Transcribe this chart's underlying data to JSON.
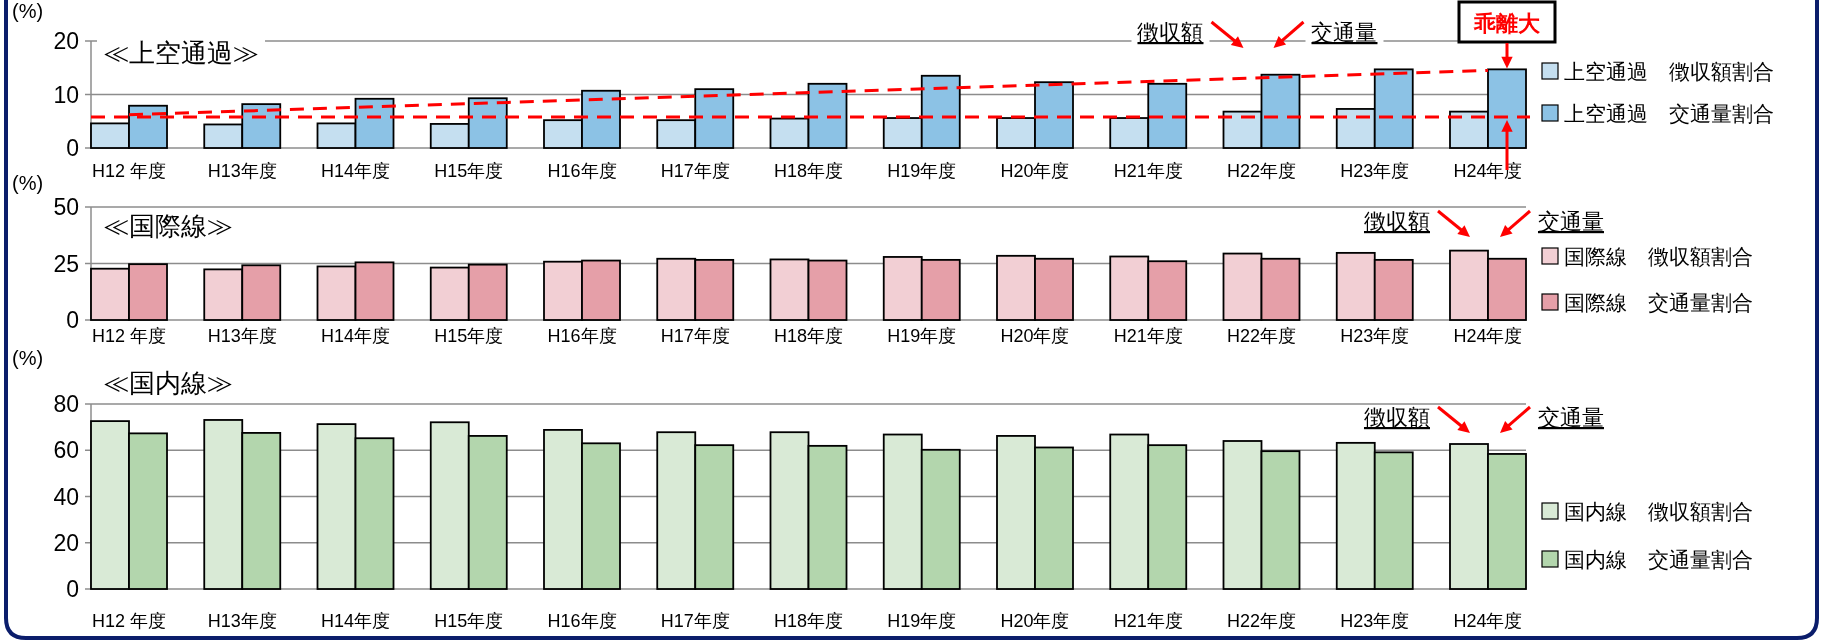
{
  "chart_data": [
    {
      "type": "bar",
      "title": "≪上空通過≫",
      "ylabel": "(%)",
      "categories": [
        "H12 年度",
        "H13年度",
        "H14年度",
        "H15年度",
        "H16年度",
        "H17年度",
        "H18年度",
        "H19年度",
        "H20年度",
        "H21年度",
        "H22年度",
        "H23年度",
        "H24年度"
      ],
      "series": [
        {
          "name": "上空通過　徴収額割合",
          "color": "#c5dff0",
          "values": [
            4.6,
            4.4,
            4.6,
            4.5,
            5.2,
            5.2,
            5.5,
            5.6,
            5.6,
            5.6,
            6.8,
            7.3,
            6.8
          ]
        },
        {
          "name": "上空通過　交通量割合",
          "color": "#8cc2e5",
          "values": [
            7.9,
            8.2,
            9.2,
            9.3,
            10.7,
            11.0,
            12.0,
            13.5,
            12.3,
            12.0,
            13.7,
            14.7,
            14.7
          ]
        },
        {
          "type": "line",
          "color": "#ff0000",
          "line_style": "dashed",
          "x": [
            "H12 年度",
            "H24年度"
          ],
          "values": [
            6.2,
            14.5
          ]
        }
      ],
      "ref_lines": [
        {
          "axis": "y",
          "value": 5.8,
          "color": "#ff0000",
          "line_style": "dashed"
        }
      ],
      "ylim": [
        0,
        20
      ],
      "yticks": [
        0,
        10,
        20
      ],
      "grid": "y",
      "legend": "right",
      "annotations": [
        "徴収額",
        "交通量",
        "乖離大"
      ]
    },
    {
      "type": "bar",
      "title": "≪国際線≫",
      "ylabel": "(%)",
      "categories": [
        "H12 年度",
        "H13年度",
        "H14年度",
        "H15年度",
        "H16年度",
        "H17年度",
        "H18年度",
        "H19年度",
        "H20年度",
        "H21年度",
        "H22年度",
        "H23年度",
        "H24年度"
      ],
      "series": [
        {
          "name": "国際線　徴収額割合",
          "color": "#f2cfd4",
          "values": [
            22.7,
            22.4,
            23.7,
            23.2,
            25.8,
            27.1,
            26.8,
            27.9,
            28.4,
            28.1,
            29.4,
            29.7,
            30.7
          ]
        },
        {
          "name": "国際線　交通量割合",
          "color": "#e59fa8",
          "values": [
            24.7,
            24.2,
            25.5,
            24.5,
            26.3,
            26.6,
            26.3,
            26.6,
            27.1,
            26.0,
            27.1,
            26.6,
            27.1
          ]
        }
      ],
      "ylim": [
        0,
        50
      ],
      "yticks": [
        0,
        25,
        50
      ],
      "grid": "y",
      "legend": "right",
      "annotations": [
        "徴収額",
        "交通量"
      ]
    },
    {
      "type": "bar",
      "title": "≪国内線≫",
      "ylabel": "(%)",
      "categories": [
        "H12 年度",
        "H13年度",
        "H14年度",
        "H15年度",
        "H16年度",
        "H17年度",
        "H18年度",
        "H19年度",
        "H20年度",
        "H21年度",
        "H22年度",
        "H23年度",
        "H24年度"
      ],
      "series": [
        {
          "name": "国内線　徴収額割合",
          "color": "#d9ead6",
          "values": [
            72.6,
            73.1,
            71.3,
            72.1,
            68.8,
            67.8,
            67.8,
            66.8,
            66.2,
            66.8,
            64.0,
            63.2,
            62.7
          ]
        },
        {
          "name": "国内線　交通量割合",
          "color": "#b3d6ad",
          "values": [
            67.3,
            67.5,
            65.2,
            66.2,
            63.0,
            62.2,
            61.9,
            60.2,
            61.2,
            62.2,
            59.6,
            59.1,
            58.4
          ]
        }
      ],
      "ylim": [
        0,
        80
      ],
      "yticks": [
        0,
        20,
        40,
        60,
        80
      ],
      "grid": "y",
      "legend": "right",
      "annotations": [
        "徴収額",
        "交通量"
      ]
    }
  ]
}
